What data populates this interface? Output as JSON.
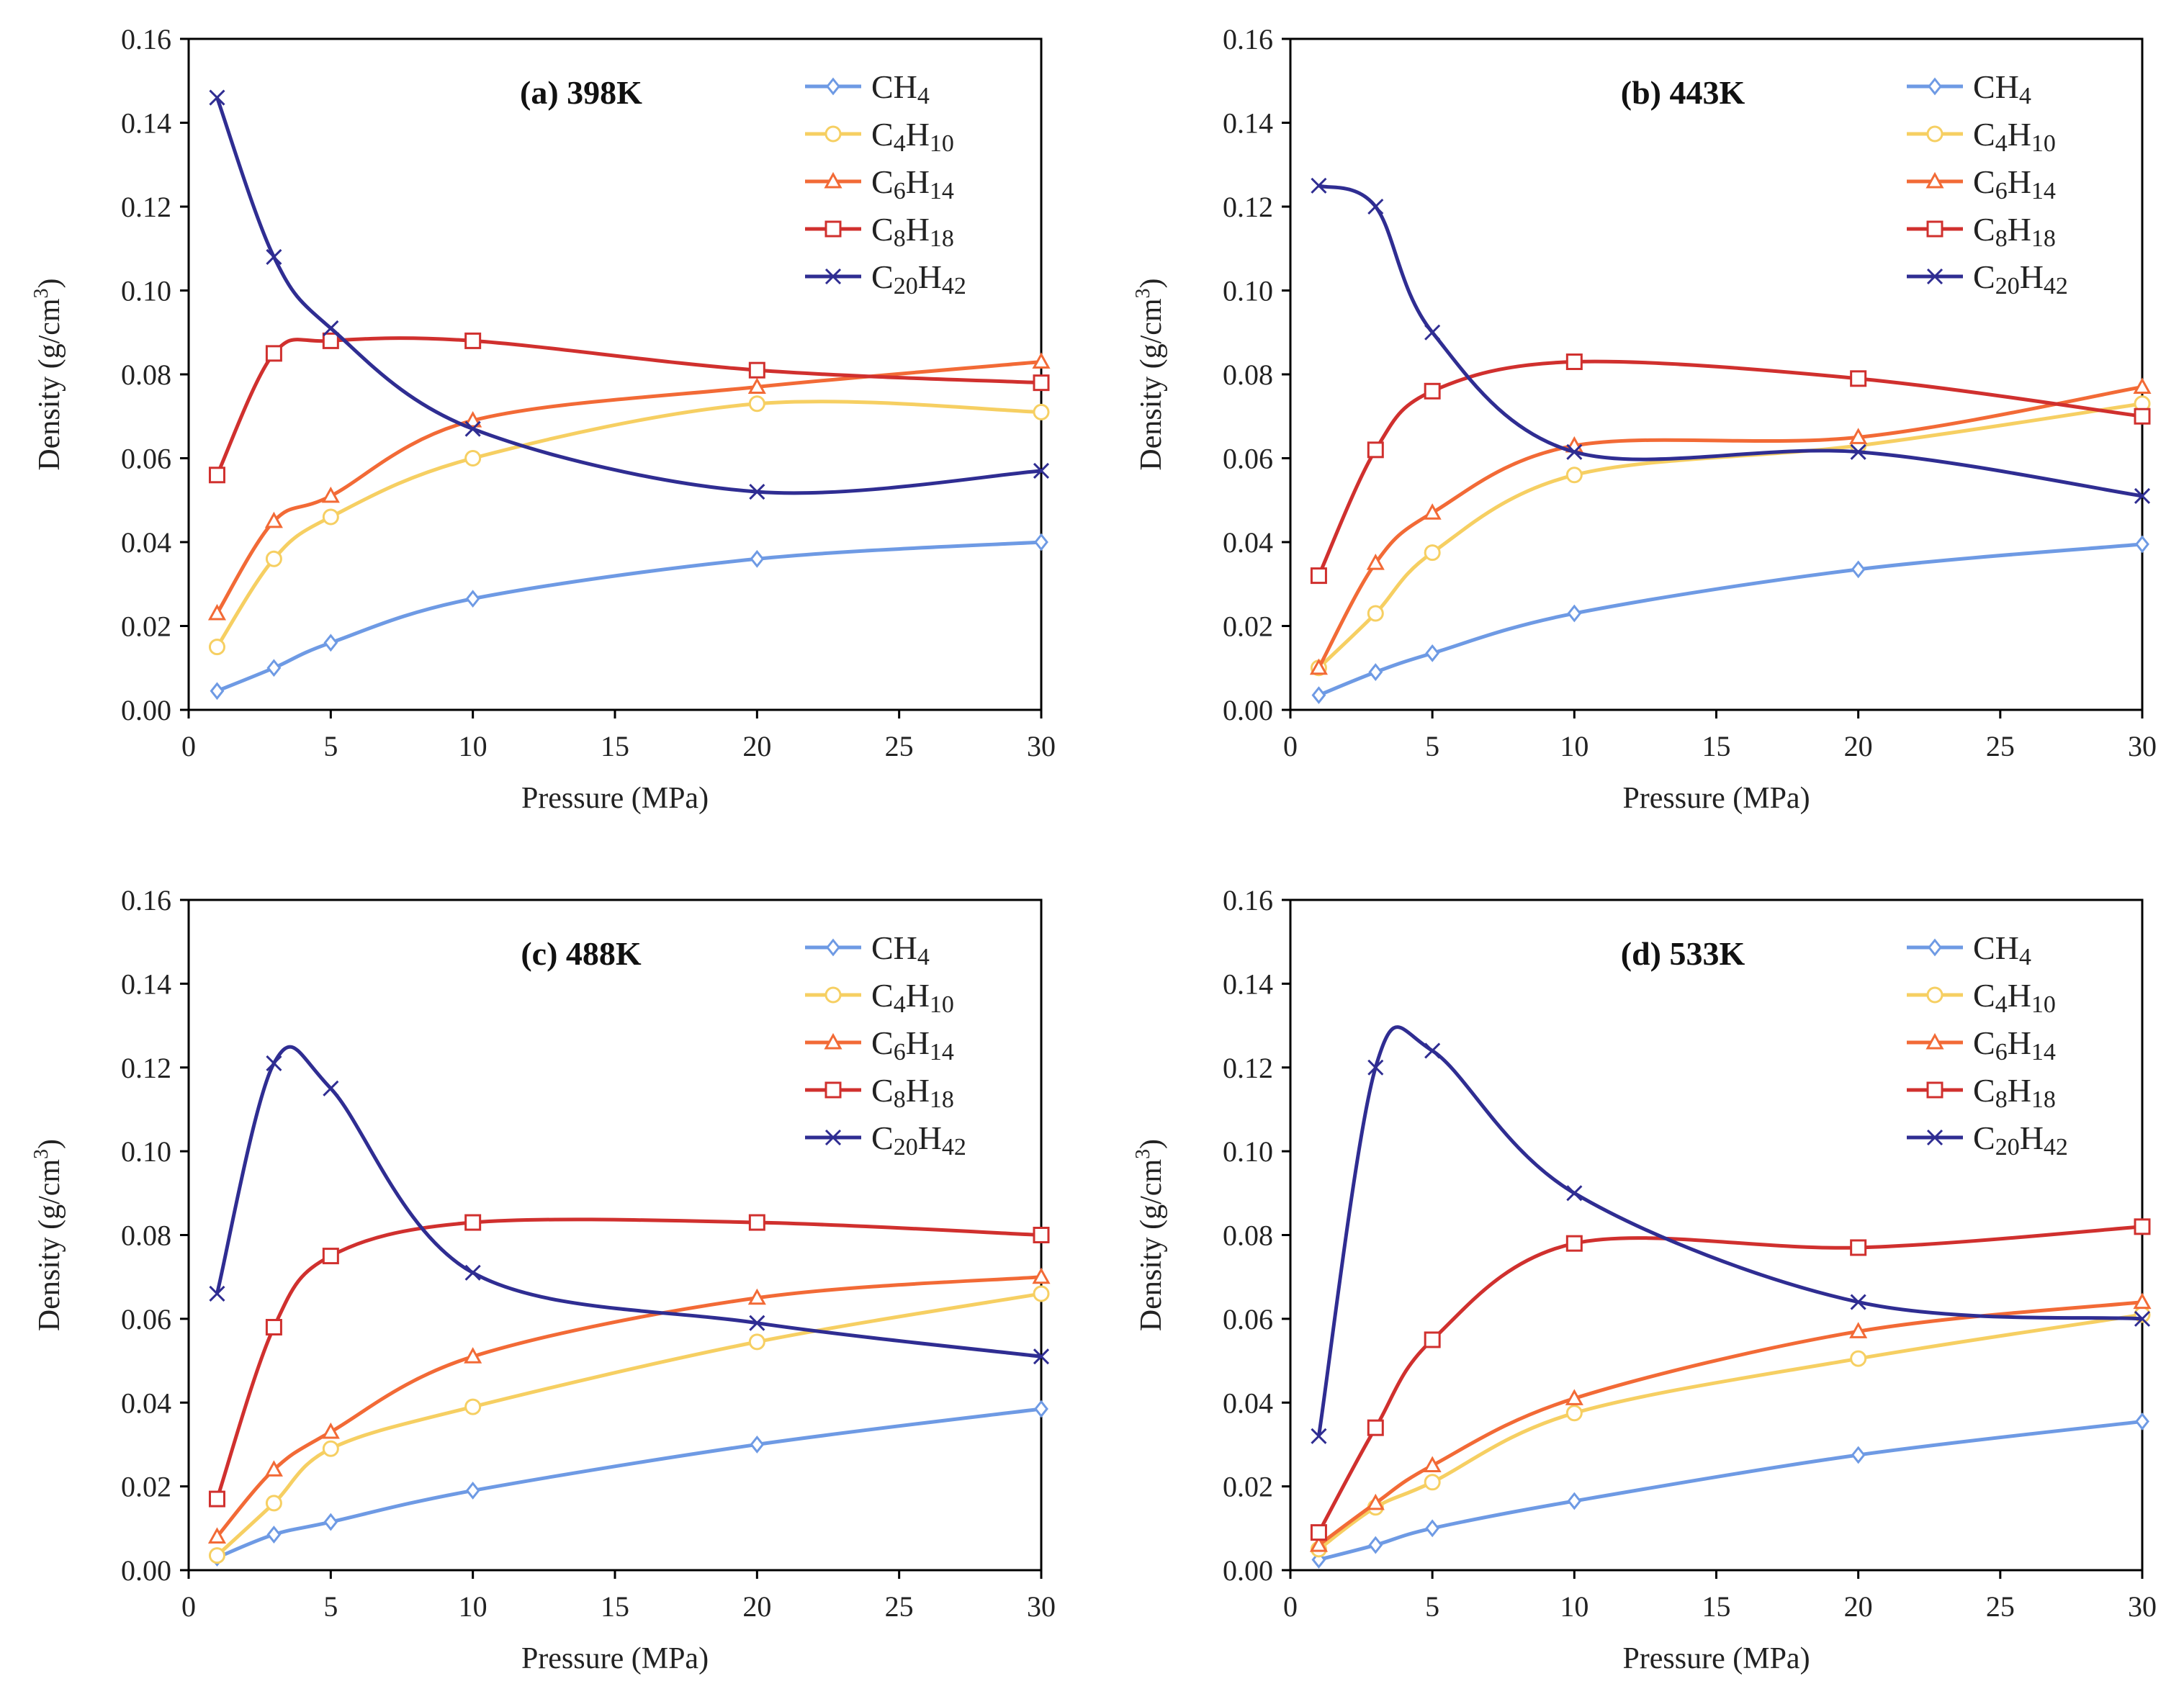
{
  "chart_data": [
    {
      "type": "line",
      "title": "(a) 398K",
      "xlabel": "Pressure (MPa)",
      "ylabel": "Density (g/cm3)",
      "xlim": [
        0,
        30
      ],
      "ylim": [
        0,
        0.16
      ],
      "xticks": [
        "0",
        "5",
        "10",
        "15",
        "20",
        "25",
        "30"
      ],
      "yticks": [
        "0.00",
        "0.02",
        "0.04",
        "0.06",
        "0.08",
        "0.10",
        "0.12",
        "0.14",
        "0.16"
      ],
      "legend_position": "top-right",
      "x": [
        1,
        3,
        5,
        10,
        20,
        30
      ],
      "series": [
        {
          "name": "CH4",
          "values": [
            0.0045,
            0.01,
            0.016,
            0.0265,
            0.036,
            0.04
          ]
        },
        {
          "name": "C4H10",
          "values": [
            0.015,
            0.036,
            0.046,
            0.06,
            0.073,
            0.071
          ]
        },
        {
          "name": "C6H14",
          "values": [
            0.023,
            0.045,
            0.051,
            0.069,
            0.077,
            0.083
          ]
        },
        {
          "name": "C8H18",
          "values": [
            0.056,
            0.085,
            0.088,
            0.088,
            0.081,
            0.078
          ]
        },
        {
          "name": "C20H42",
          "values": [
            0.146,
            0.108,
            0.091,
            0.067,
            0.052,
            0.057
          ]
        }
      ]
    },
    {
      "type": "line",
      "title": "(b) 443K",
      "xlabel": "Pressure (MPa)",
      "ylabel": "Density (g/cm3)",
      "xlim": [
        0,
        30
      ],
      "ylim": [
        0,
        0.16
      ],
      "xticks": [
        "0",
        "5",
        "10",
        "15",
        "20",
        "25",
        "30"
      ],
      "yticks": [
        "0.00",
        "0.02",
        "0.04",
        "0.06",
        "0.08",
        "0.10",
        "0.12",
        "0.14",
        "0.16"
      ],
      "legend_position": "top-right",
      "x": [
        1,
        3,
        5,
        10,
        20,
        30
      ],
      "series": [
        {
          "name": "CH4",
          "values": [
            0.0035,
            0.009,
            0.0135,
            0.023,
            0.0335,
            0.0395
          ]
        },
        {
          "name": "C4H10",
          "values": [
            0.01,
            0.023,
            0.0375,
            0.056,
            0.063,
            0.073
          ]
        },
        {
          "name": "C6H14",
          "values": [
            0.01,
            0.035,
            0.047,
            0.063,
            0.065,
            0.077
          ]
        },
        {
          "name": "C8H18",
          "values": [
            0.032,
            0.062,
            0.076,
            0.083,
            0.079,
            0.07
          ]
        },
        {
          "name": "C20H42",
          "values": [
            0.125,
            0.12,
            0.09,
            0.0615,
            0.0615,
            0.051
          ]
        }
      ]
    },
    {
      "type": "line",
      "title": "(c) 488K",
      "xlabel": "Pressure (MPa)",
      "ylabel": "Density (g/cm3)",
      "xlim": [
        0,
        30
      ],
      "ylim": [
        0,
        0.16
      ],
      "xticks": [
        "0",
        "5",
        "10",
        "15",
        "20",
        "25",
        "30"
      ],
      "yticks": [
        "0.00",
        "0.02",
        "0.04",
        "0.06",
        "0.08",
        "0.10",
        "0.12",
        "0.14",
        "0.16"
      ],
      "legend_position": "top-right",
      "x": [
        1,
        3,
        5,
        10,
        20,
        30
      ],
      "series": [
        {
          "name": "CH4",
          "values": [
            0.003,
            0.0085,
            0.0115,
            0.019,
            0.03,
            0.0385
          ]
        },
        {
          "name": "C4H10",
          "values": [
            0.0035,
            0.016,
            0.029,
            0.039,
            0.0545,
            0.066
          ]
        },
        {
          "name": "C6H14",
          "values": [
            0.008,
            0.024,
            0.033,
            0.051,
            0.065,
            0.07
          ]
        },
        {
          "name": "C8H18",
          "values": [
            0.017,
            0.058,
            0.075,
            0.083,
            0.083,
            0.08
          ]
        },
        {
          "name": "C20H42",
          "values": [
            0.066,
            0.121,
            0.115,
            0.071,
            0.059,
            0.051
          ]
        }
      ]
    },
    {
      "type": "line",
      "title": "(d) 533K",
      "xlabel": "Pressure (MPa)",
      "ylabel": "Density (g/cm3)",
      "xlim": [
        0,
        30
      ],
      "ylim": [
        0,
        0.16
      ],
      "xticks": [
        "0",
        "5",
        "10",
        "15",
        "20",
        "25",
        "30"
      ],
      "yticks": [
        "0.00",
        "0.02",
        "0.04",
        "0.06",
        "0.08",
        "0.10",
        "0.12",
        "0.14",
        "0.16"
      ],
      "legend_position": "top-right",
      "x": [
        1,
        3,
        5,
        10,
        20,
        30
      ],
      "series": [
        {
          "name": "CH4",
          "values": [
            0.0025,
            0.006,
            0.01,
            0.0165,
            0.0275,
            0.0355
          ]
        },
        {
          "name": "C4H10",
          "values": [
            0.005,
            0.015,
            0.021,
            0.0375,
            0.0505,
            0.061
          ]
        },
        {
          "name": "C6H14",
          "values": [
            0.006,
            0.016,
            0.025,
            0.041,
            0.057,
            0.064
          ]
        },
        {
          "name": "C8H18",
          "values": [
            0.009,
            0.034,
            0.055,
            0.078,
            0.077,
            0.082
          ]
        },
        {
          "name": "C20H42",
          "values": [
            0.032,
            0.12,
            0.124,
            0.09,
            0.064,
            0.06
          ]
        }
      ]
    }
  ],
  "series_style": [
    {
      "color": "#6e9ae4",
      "marker": "diamond"
    },
    {
      "color": "#f6cf62",
      "marker": "circle"
    },
    {
      "color": "#f26a36",
      "marker": "triangle"
    },
    {
      "color": "#d0302e",
      "marker": "square"
    },
    {
      "color": "#2f2d92",
      "marker": "x"
    }
  ]
}
